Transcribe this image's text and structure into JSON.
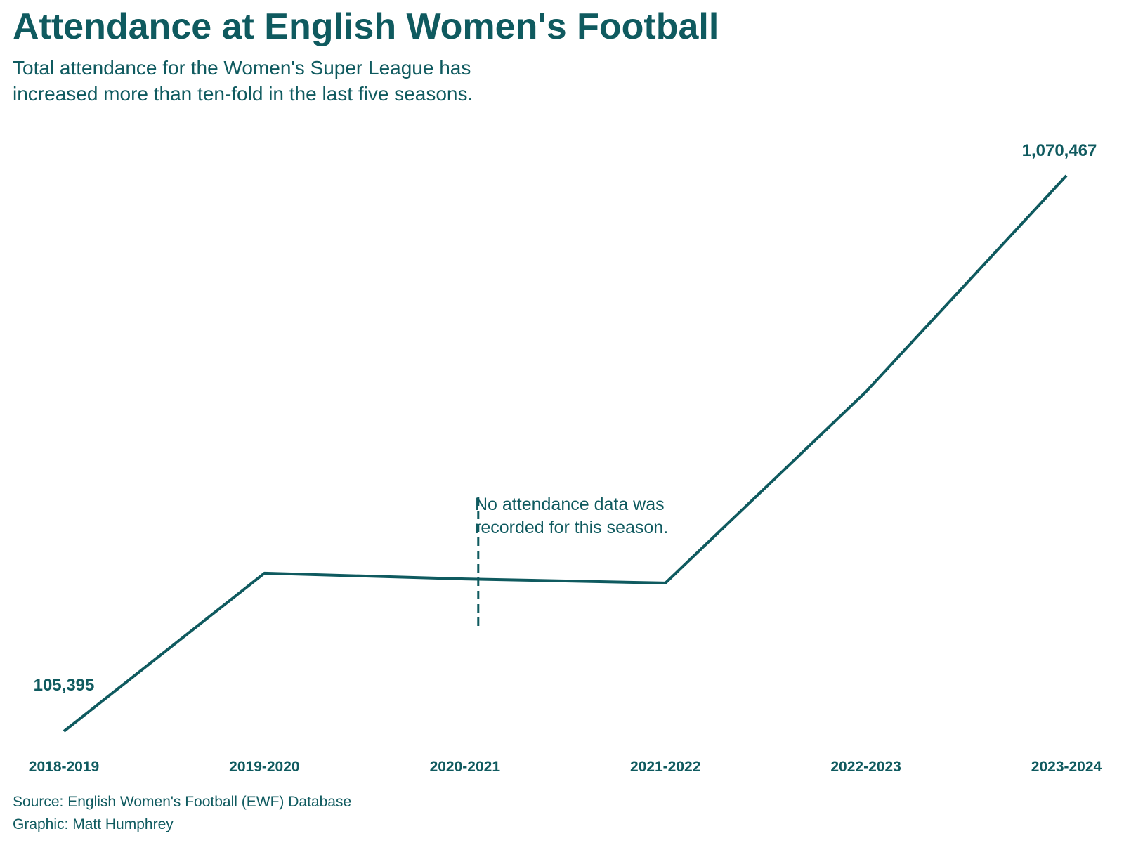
{
  "chart_data": {
    "type": "line",
    "title": "Attendance at English Women's Football",
    "subtitle": [
      "Total attendance for the Women's Super League has",
      "increased more than ten-fold in the last five seasons."
    ],
    "xlabel": "",
    "ylabel": "",
    "categories": [
      "2018-2019",
      "2019-2020",
      "2020-2021",
      "2021-2022",
      "2022-2023",
      "2023-2024"
    ],
    "values": [
      105395,
      380000,
      370000,
      363000,
      695000,
      1070467
    ],
    "value_labels": {
      "first": "105,395",
      "last": "1,070,467"
    },
    "ylim": [
      105395,
      1070467
    ],
    "grid": false,
    "legend": "none",
    "annotation": {
      "category": "2020-2021",
      "lines": [
        "No attendance data was",
        "recorded for this season."
      ]
    },
    "footer": [
      "Source: English Women's Football (EWF) Database",
      "Graphic: Matt Humphrey"
    ],
    "colors": {
      "accent": "#0f5a5f"
    }
  }
}
